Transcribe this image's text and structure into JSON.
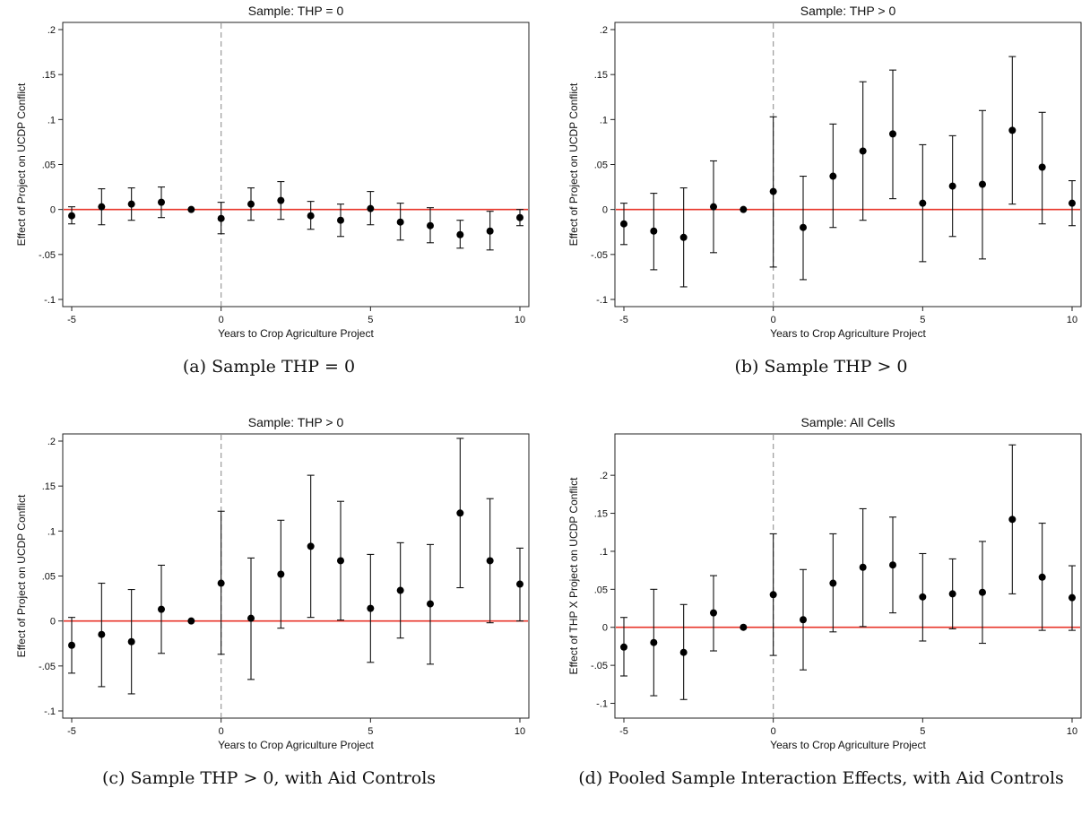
{
  "chart_data": [
    {
      "type": "scatter",
      "title": "Sample: THP = 0",
      "xlabel": "Years to Crop Agriculture Project",
      "ylabel": "Effect of Project on UCDP Conflict",
      "caption": "(a) Sample THP = 0",
      "xlim": [
        -5,
        10
      ],
      "ylim": [
        -0.1,
        0.2
      ],
      "xticks": [
        -5,
        0,
        5,
        10
      ],
      "xtick_labels": [
        "-5",
        "0",
        "5",
        "10"
      ],
      "yticks": [
        -0.1,
        -0.05,
        0,
        0.05,
        0.1,
        0.15,
        0.2
      ],
      "ytick_labels": [
        "-.1",
        "-.05",
        "0",
        ".05",
        ".1",
        ".15",
        ".2"
      ],
      "x": [
        -5,
        -4,
        -3,
        -2,
        -1,
        0,
        1,
        2,
        3,
        4,
        5,
        6,
        7,
        8,
        9,
        10
      ],
      "estimate": [
        -0.007,
        0.003,
        0.006,
        0.008,
        0.0,
        -0.01,
        0.006,
        0.01,
        -0.007,
        -0.012,
        0.001,
        -0.014,
        -0.018,
        -0.028,
        -0.024,
        -0.009
      ],
      "ci_low": [
        -0.016,
        -0.017,
        -0.012,
        -0.009,
        0.0,
        -0.027,
        -0.012,
        -0.011,
        -0.022,
        -0.03,
        -0.017,
        -0.034,
        -0.037,
        -0.043,
        -0.045,
        -0.018
      ],
      "ci_high": [
        0.003,
        0.023,
        0.024,
        0.025,
        0.0,
        0.008,
        0.024,
        0.031,
        0.009,
        0.006,
        0.02,
        0.007,
        0.002,
        -0.012,
        -0.002,
        0.0
      ],
      "hline": 0,
      "vline": 0,
      "colors": {
        "hline": "#e8352a",
        "vline": "#9a9a9a",
        "marker": "#000000"
      }
    },
    {
      "type": "scatter",
      "title": "Sample: THP > 0",
      "xlabel": "Years to Crop Agriculture Project",
      "ylabel": "Effect of Project on UCDP Conflict",
      "caption": "(b) Sample THP > 0",
      "xlim": [
        -5,
        10
      ],
      "ylim": [
        -0.1,
        0.2
      ],
      "xticks": [
        -5,
        0,
        5,
        10
      ],
      "xtick_labels": [
        "-5",
        "0",
        "5",
        "10"
      ],
      "yticks": [
        -0.1,
        -0.05,
        0,
        0.05,
        0.1,
        0.15,
        0.2
      ],
      "ytick_labels": [
        "-.1",
        "-.05",
        "0",
        ".05",
        ".1",
        ".15",
        ".2"
      ],
      "x": [
        -5,
        -4,
        -3,
        -2,
        -1,
        0,
        1,
        2,
        3,
        4,
        5,
        6,
        7,
        8,
        9,
        10
      ],
      "estimate": [
        -0.016,
        -0.024,
        -0.031,
        0.003,
        0.0,
        0.02,
        -0.02,
        0.037,
        0.065,
        0.084,
        0.007,
        0.026,
        0.028,
        0.088,
        0.047,
        0.007
      ],
      "ci_low": [
        -0.039,
        -0.067,
        -0.086,
        -0.048,
        0.0,
        -0.064,
        -0.078,
        -0.02,
        -0.012,
        0.012,
        -0.058,
        -0.03,
        -0.055,
        0.006,
        -0.016,
        -0.018
      ],
      "ci_high": [
        0.007,
        0.018,
        0.024,
        0.054,
        0.0,
        0.103,
        0.037,
        0.095,
        0.142,
        0.155,
        0.072,
        0.082,
        0.11,
        0.17,
        0.108,
        0.032
      ],
      "hline": 0,
      "vline": 0,
      "colors": {
        "hline": "#e8352a",
        "vline": "#9a9a9a",
        "marker": "#000000"
      }
    },
    {
      "type": "scatter",
      "title": "Sample: THP > 0",
      "xlabel": "Years to Crop Agriculture Project",
      "ylabel": "Effect of Project on UCDP Conflict",
      "caption": "(c) Sample THP > 0, with Aid Controls",
      "xlim": [
        -5,
        10
      ],
      "ylim": [
        -0.1,
        0.2
      ],
      "xticks": [
        -5,
        0,
        5,
        10
      ],
      "xtick_labels": [
        "-5",
        "0",
        "5",
        "10"
      ],
      "yticks": [
        -0.1,
        -0.05,
        0,
        0.05,
        0.1,
        0.15,
        0.2
      ],
      "ytick_labels": [
        "-.1",
        "-.05",
        "0",
        ".05",
        ".1",
        ".15",
        ".2"
      ],
      "x": [
        -5,
        -4,
        -3,
        -2,
        -1,
        0,
        1,
        2,
        3,
        4,
        5,
        6,
        7,
        8,
        9,
        10
      ],
      "estimate": [
        -0.027,
        -0.015,
        -0.023,
        0.013,
        0.0,
        0.042,
        0.003,
        0.052,
        0.083,
        0.067,
        0.014,
        0.034,
        0.019,
        0.12,
        0.067,
        0.041
      ],
      "ci_low": [
        -0.058,
        -0.073,
        -0.081,
        -0.036,
        0.0,
        -0.037,
        -0.065,
        -0.008,
        0.004,
        0.001,
        -0.046,
        -0.019,
        -0.048,
        0.037,
        -0.002,
        0.0
      ],
      "ci_high": [
        0.004,
        0.042,
        0.035,
        0.062,
        0.0,
        0.122,
        0.07,
        0.112,
        0.162,
        0.133,
        0.074,
        0.087,
        0.085,
        0.203,
        0.136,
        0.081
      ],
      "hline": 0,
      "vline": 0,
      "colors": {
        "hline": "#e8352a",
        "vline": "#9a9a9a",
        "marker": "#000000"
      }
    },
    {
      "type": "scatter",
      "title": "Sample: All Cells",
      "xlabel": "Years to Crop Agriculture Project",
      "ylabel": "Effect of THP X Project on UCDP Conflict",
      "caption": "(d) Pooled Sample Interaction Effects, with Aid Controls",
      "xlim": [
        -5,
        10
      ],
      "ylim": [
        -0.11,
        0.245
      ],
      "xticks": [
        -5,
        0,
        5,
        10
      ],
      "xtick_labels": [
        "-5",
        "0",
        "5",
        "10"
      ],
      "yticks": [
        -0.1,
        -0.05,
        0,
        0.05,
        0.1,
        0.15,
        0.2
      ],
      "ytick_labels": [
        "-.1",
        "-.05",
        "0",
        ".05",
        ".1",
        ".15",
        ".2"
      ],
      "x": [
        -5,
        -4,
        -3,
        -2,
        -1,
        0,
        1,
        2,
        3,
        4,
        5,
        6,
        7,
        8,
        9,
        10
      ],
      "estimate": [
        -0.026,
        -0.02,
        -0.033,
        0.019,
        0.0,
        0.043,
        0.01,
        0.058,
        0.079,
        0.082,
        0.04,
        0.044,
        0.046,
        0.142,
        0.066,
        0.039
      ],
      "ci_low": [
        -0.064,
        -0.09,
        -0.095,
        -0.031,
        0.0,
        -0.037,
        -0.056,
        -0.006,
        0.001,
        0.019,
        -0.018,
        -0.002,
        -0.021,
        0.044,
        -0.004,
        -0.004
      ],
      "ci_high": [
        0.013,
        0.05,
        0.03,
        0.068,
        0.0,
        0.123,
        0.076,
        0.123,
        0.156,
        0.145,
        0.097,
        0.09,
        0.113,
        0.24,
        0.137,
        0.081
      ],
      "hline": 0,
      "vline": 0,
      "colors": {
        "hline": "#e8352a",
        "vline": "#9a9a9a",
        "marker": "#000000"
      }
    }
  ]
}
